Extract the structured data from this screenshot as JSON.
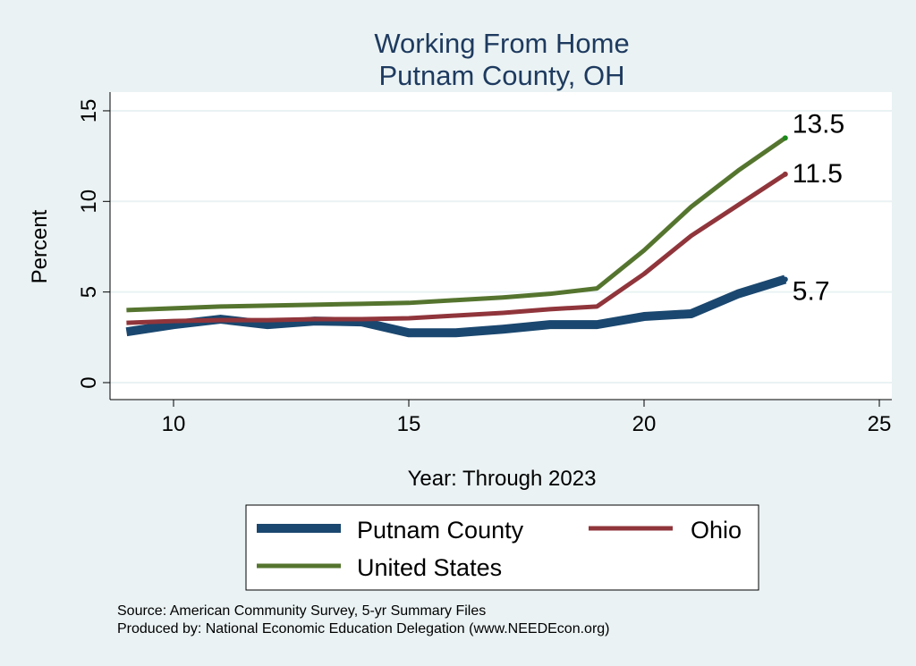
{
  "chart_data": {
    "type": "line",
    "title": "Working From Home",
    "subtitle": "Putnam County, OH",
    "xlabel": "Year: Through 2023",
    "ylabel": "Percent",
    "xlim": [
      8.7,
      25.3
    ],
    "ylim": [
      -0.8,
      16.2
    ],
    "xticks": [
      10,
      15,
      20,
      25
    ],
    "yticks": [
      0,
      5,
      10,
      15
    ],
    "grid": true,
    "legend_position": "bottom",
    "x": [
      9,
      10,
      11,
      12,
      13,
      14,
      15,
      16,
      17,
      18,
      19,
      20,
      21,
      22,
      23
    ],
    "series": [
      {
        "name": "Putnam County",
        "color": "#1a476f",
        "values": [
          2.8,
          3.2,
          3.5,
          3.2,
          3.4,
          3.35,
          2.75,
          2.75,
          2.95,
          3.2,
          3.2,
          3.65,
          3.8,
          4.9,
          5.7
        ],
        "end_label": "5.7"
      },
      {
        "name": "Ohio",
        "color": "#90353b",
        "values": [
          3.3,
          3.4,
          3.45,
          3.45,
          3.5,
          3.5,
          3.55,
          3.7,
          3.85,
          4.05,
          4.2,
          6.0,
          8.1,
          9.8,
          11.5
        ],
        "end_label": "11.5"
      },
      {
        "name": "United States",
        "color": "#55752f",
        "values": [
          4.0,
          4.1,
          4.2,
          4.25,
          4.3,
          4.35,
          4.4,
          4.55,
          4.7,
          4.9,
          5.2,
          7.3,
          9.7,
          11.7,
          13.5
        ],
        "end_label": "13.5"
      }
    ],
    "notes": [
      "Source: American Community Survey, 5-yr Summary Files",
      "Produced by: National Economic Education Delegation (www.NEEDEcon.org)"
    ]
  }
}
